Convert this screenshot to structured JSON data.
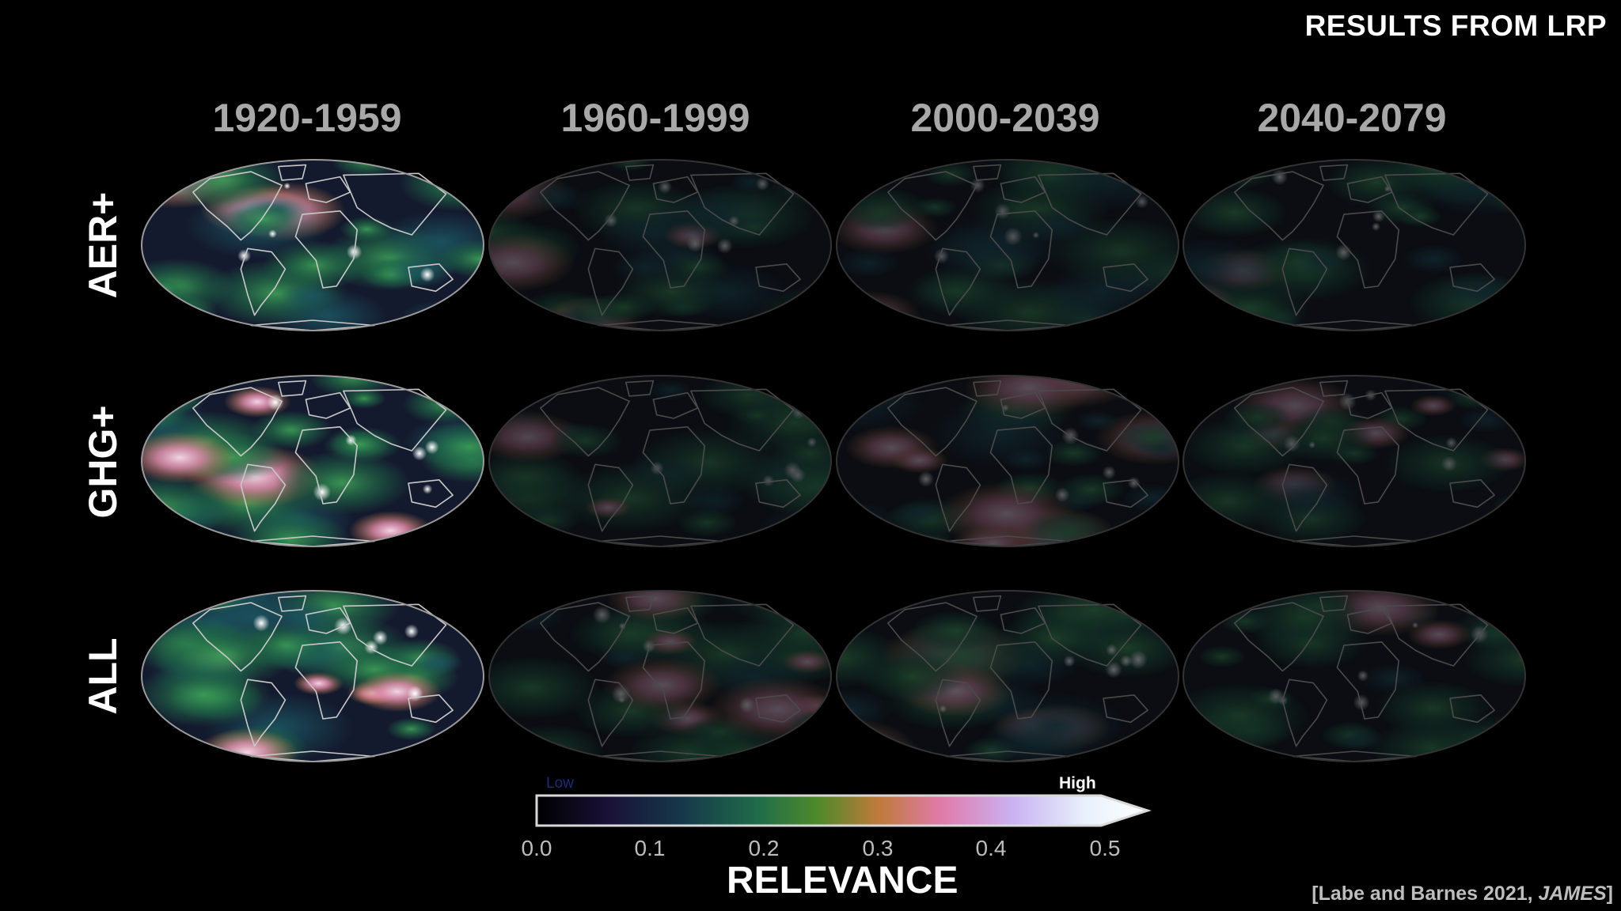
{
  "header": {
    "title": "RESULTS FROM LRP"
  },
  "periods": [
    "1920-1959",
    "1960-1999",
    "2000-2039",
    "2040-2079"
  ],
  "rows": [
    "AER+",
    "GHG+",
    "ALL"
  ],
  "map_intensity": [
    [
      1.0,
      0.32,
      0.3,
      0.34
    ],
    [
      1.0,
      0.3,
      0.33,
      0.3
    ],
    [
      1.0,
      0.33,
      0.36,
      0.32
    ]
  ],
  "colorbar": {
    "low_label": "Low",
    "high_label": "High",
    "ticks": [
      "0.0",
      "0.1",
      "0.2",
      "0.3",
      "0.4",
      "0.5"
    ],
    "label": "RELEVANCE",
    "colors": [
      "#000000",
      "#1a1238",
      "#16394a",
      "#1f6b4a",
      "#4e8a2a",
      "#c07a3a",
      "#e07aa8",
      "#c9b2f2",
      "#e8f2fb",
      "#ffffff"
    ]
  },
  "citation": {
    "text": "[Labe and Barnes 2021, ",
    "journal": "JAMES",
    "close": "]"
  }
}
